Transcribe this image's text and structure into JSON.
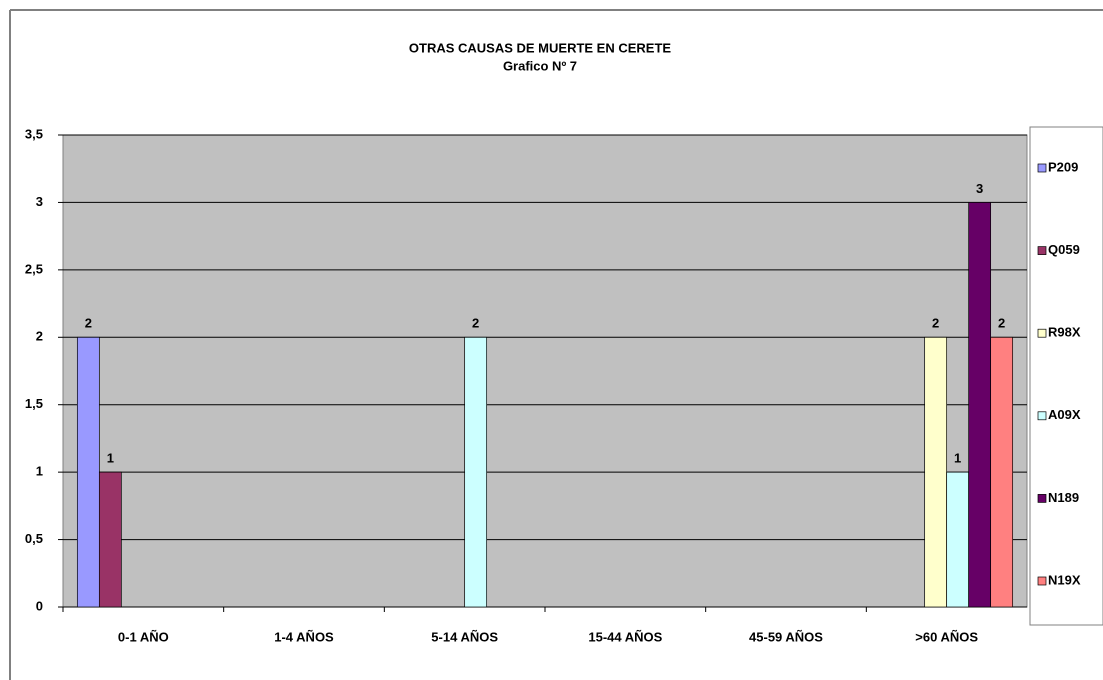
{
  "chart_data": {
    "type": "bar",
    "title": "OTRAS CAUSAS DE MUERTE EN CERETE",
    "subtitle": "Grafico Nº 7",
    "categories": [
      "0-1 AÑO",
      "1-4 AÑOS",
      "5-14 AÑOS",
      "15-44 AÑOS",
      "45-59 AÑOS",
      ">60 AÑOS"
    ],
    "series": [
      {
        "name": "P209",
        "color": "#9999ff",
        "values": [
          2,
          null,
          null,
          null,
          null,
          null
        ]
      },
      {
        "name": "Q059",
        "color": "#993366",
        "values": [
          1,
          null,
          null,
          null,
          null,
          null
        ]
      },
      {
        "name": "R98X",
        "color": "#ffffcc",
        "values": [
          null,
          null,
          null,
          null,
          null,
          2
        ]
      },
      {
        "name": "A09X",
        "color": "#ccffff",
        "values": [
          null,
          null,
          2,
          null,
          null,
          1
        ]
      },
      {
        "name": "N189",
        "color": "#660066",
        "values": [
          null,
          null,
          null,
          null,
          null,
          3
        ]
      },
      {
        "name": "N19X",
        "color": "#ff8080",
        "values": [
          null,
          null,
          null,
          null,
          null,
          2
        ]
      }
    ],
    "ylim": [
      0,
      3.5
    ],
    "yticks": [
      0,
      {
        "value": 0.5,
        "label": "0,5"
      },
      1,
      {
        "value": 1.5,
        "label": "1,5"
      },
      2,
      {
        "value": 2.5,
        "label": "2,5"
      },
      3,
      {
        "value": 3.5,
        "label": "3,5"
      }
    ],
    "grid": true,
    "legend": "right"
  }
}
